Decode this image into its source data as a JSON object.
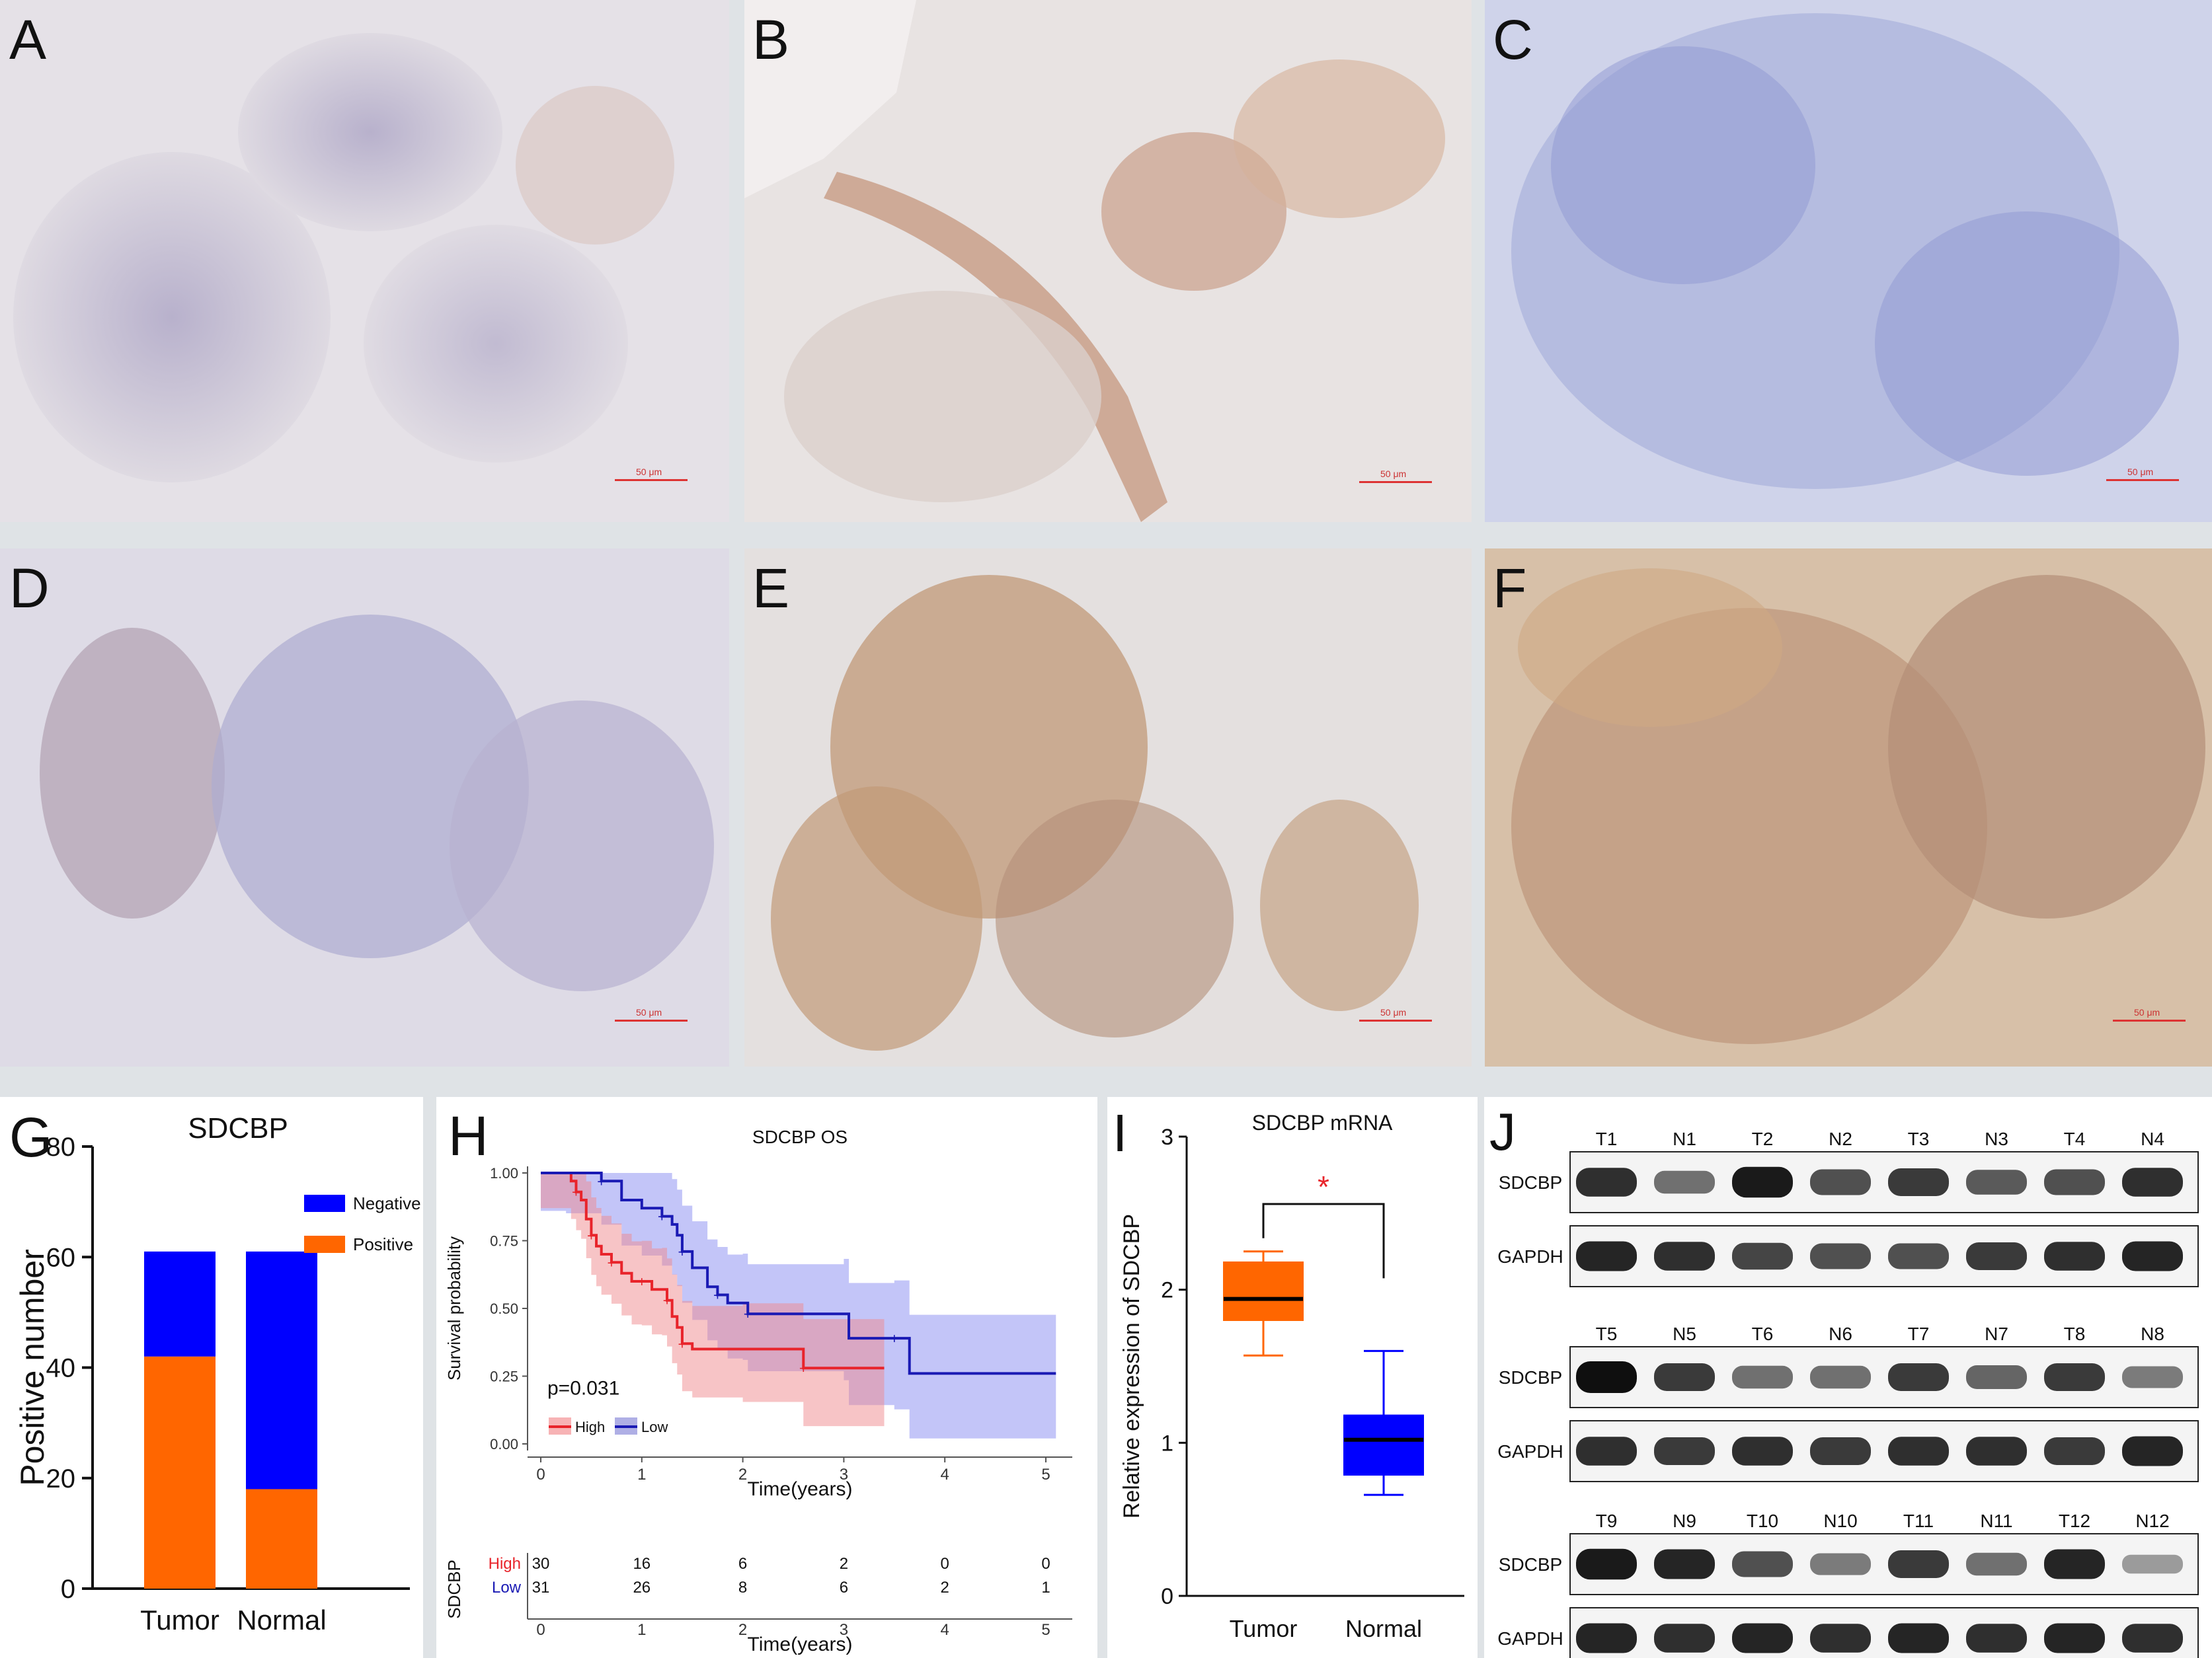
{
  "histology_panels": [
    {
      "label": "A",
      "scale": "50 μm"
    },
    {
      "label": "B",
      "scale": "50 μm"
    },
    {
      "label": "C",
      "scale": "50 μm"
    },
    {
      "label": "D",
      "scale": "50 μm"
    },
    {
      "label": "E",
      "scale": "50 μm"
    },
    {
      "label": "F",
      "scale": "50 μm"
    }
  ],
  "chart_data": [
    {
      "panel": "G",
      "type": "bar",
      "stacked": true,
      "title": "SDCBP",
      "ylabel": "Positive number",
      "xlabel": "",
      "categories": [
        "Tumor",
        "Normal"
      ],
      "ylim": [
        0,
        80
      ],
      "yticks": [
        "0",
        "20",
        "40",
        "60",
        "80"
      ],
      "series": [
        {
          "name": "Positive",
          "color": "#ff6600",
          "values": [
            42,
            18
          ]
        },
        {
          "name": "Negative",
          "color": "#0000ff",
          "values": [
            19,
            43
          ]
        }
      ],
      "legend": "top-right"
    },
    {
      "panel": "H",
      "type": "line",
      "title": "SDCBP OS",
      "xlabel": "Time(years)",
      "ylabel": "Survival probability",
      "xlim": [
        0,
        5
      ],
      "ylim": [
        0,
        1
      ],
      "xticks": [
        "0",
        "1",
        "2",
        "3",
        "4",
        "5"
      ],
      "yticks": [
        "0.00",
        "0.25",
        "0.50",
        "0.75",
        "1.00"
      ],
      "annotation": "p=0.031",
      "series": [
        {
          "name": "High",
          "color": "#e8242b",
          "x": [
            0,
            0.3,
            0.35,
            0.4,
            0.45,
            0.5,
            0.55,
            0.6,
            0.7,
            0.8,
            0.9,
            1.0,
            1.1,
            1.2,
            1.25,
            1.3,
            1.35,
            1.4,
            1.5,
            2.0,
            2.6,
            3.4
          ],
          "y": [
            1.0,
            0.97,
            0.93,
            0.9,
            0.83,
            0.77,
            0.73,
            0.7,
            0.67,
            0.63,
            0.6,
            0.6,
            0.57,
            0.57,
            0.53,
            0.47,
            0.43,
            0.37,
            0.35,
            0.35,
            0.28,
            0.28
          ]
        },
        {
          "name": "Low",
          "color": "#1a1ab4",
          "x": [
            0,
            0.25,
            0.6,
            0.8,
            1.0,
            1.2,
            1.3,
            1.35,
            1.4,
            1.5,
            1.65,
            1.75,
            1.85,
            2.0,
            2.05,
            3.0,
            3.05,
            3.5,
            3.65,
            5.1
          ],
          "y": [
            1.0,
            1.0,
            0.97,
            0.9,
            0.87,
            0.84,
            0.81,
            0.77,
            0.71,
            0.65,
            0.58,
            0.55,
            0.52,
            0.52,
            0.48,
            0.48,
            0.39,
            0.39,
            0.26,
            0.26
          ]
        }
      ],
      "risk_table": {
        "title": "SDCBP",
        "rows": [
          {
            "name": "High",
            "color": "#e8242b",
            "values": [
              "30",
              "16",
              "6",
              "2",
              "0",
              "0"
            ]
          },
          {
            "name": "Low",
            "color": "#1a1ab4",
            "values": [
              "31",
              "26",
              "8",
              "6",
              "2",
              "1"
            ]
          }
        ],
        "xticks": [
          "0",
          "1",
          "2",
          "3",
          "4",
          "5"
        ],
        "xlabel": "Time(years)"
      }
    },
    {
      "panel": "I",
      "type": "box",
      "title": "SDCBP mRNA",
      "ylabel": "Relative expression of SDCBP",
      "categories": [
        "Tumor",
        "Normal"
      ],
      "ylim": [
        0,
        3
      ],
      "yticks": [
        "0",
        "1",
        "2",
        "3"
      ],
      "boxes": [
        {
          "name": "Tumor",
          "color": "#ff6600",
          "min": 1.57,
          "q1": 1.8,
          "median": 1.94,
          "q3": 2.18,
          "max": 2.25
        },
        {
          "name": "Normal",
          "color": "#0000ff",
          "min": 0.66,
          "q1": 0.79,
          "median": 1.02,
          "q3": 1.18,
          "max": 1.6
        }
      ],
      "significance": "*"
    }
  ],
  "blots": {
    "label": "J",
    "groups": [
      {
        "lanes": [
          "T1",
          "N1",
          "T2",
          "N2",
          "T3",
          "N3",
          "T4",
          "N4"
        ],
        "rows": [
          {
            "name": "SDCBP",
            "intensity": [
              0.85,
              0.55,
              0.95,
              0.7,
              0.8,
              0.65,
              0.7,
              0.85
            ]
          },
          {
            "name": "GAPDH",
            "intensity": [
              0.9,
              0.85,
              0.75,
              0.7,
              0.7,
              0.8,
              0.85,
              0.9
            ]
          }
        ]
      },
      {
        "lanes": [
          "T5",
          "N5",
          "T6",
          "N6",
          "T7",
          "N7",
          "T8",
          "N8"
        ],
        "rows": [
          {
            "name": "SDCBP",
            "intensity": [
              1.0,
              0.8,
              0.55,
              0.55,
              0.8,
              0.6,
              0.8,
              0.5
            ]
          },
          {
            "name": "GAPDH",
            "intensity": [
              0.85,
              0.8,
              0.85,
              0.8,
              0.85,
              0.85,
              0.8,
              0.9
            ]
          }
        ]
      },
      {
        "lanes": [
          "T9",
          "N9",
          "T10",
          "N10",
          "T11",
          "N11",
          "T12",
          "N12"
        ],
        "rows": [
          {
            "name": "SDCBP",
            "intensity": [
              0.95,
              0.9,
              0.7,
              0.5,
              0.8,
              0.55,
              0.9,
              0.35
            ]
          },
          {
            "name": "GAPDH",
            "intensity": [
              0.9,
              0.85,
              0.9,
              0.85,
              0.9,
              0.85,
              0.9,
              0.85
            ]
          }
        ]
      }
    ]
  },
  "colors": {
    "stain_blue": "#6f78b8",
    "stain_brown": "#b07a4a",
    "tumor": "#ff6600",
    "normal": "#0000ff",
    "high": "#e8242b",
    "low": "#1a1ab4"
  }
}
